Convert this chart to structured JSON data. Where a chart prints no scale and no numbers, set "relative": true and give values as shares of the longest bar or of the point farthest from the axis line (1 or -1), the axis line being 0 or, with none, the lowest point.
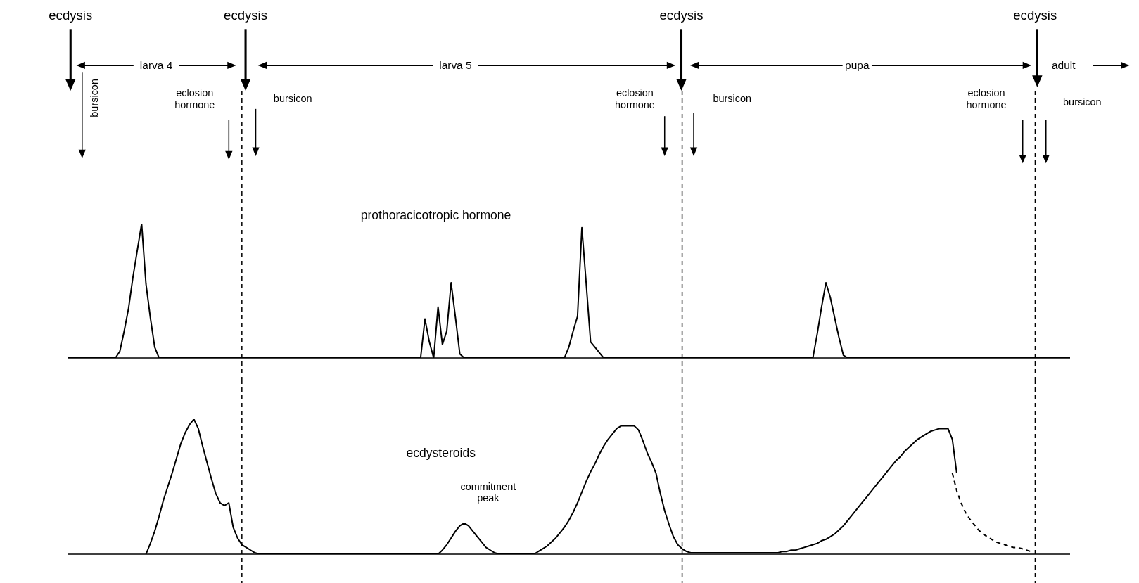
{
  "chart_data": [
    {
      "type": "line",
      "relative": true,
      "tick_labels": false,
      "categories": [
        null,
        null,
        null,
        null,
        null,
        null,
        null,
        null,
        null,
        null,
        null,
        null,
        null,
        null,
        null,
        null,
        null,
        null,
        null,
        null,
        null,
        null,
        null,
        null,
        null,
        null,
        null,
        null,
        null,
        null,
        null,
        null,
        null,
        null,
        null,
        null,
        null,
        null,
        null,
        null,
        null,
        null,
        null,
        null,
        null,
        null,
        null,
        null,
        null,
        null,
        null,
        null,
        null,
        null,
        null,
        null,
        null,
        null,
        null,
        null,
        null,
        null,
        null,
        null,
        null,
        null,
        null,
        null,
        null,
        null,
        null,
        null,
        null,
        null,
        null,
        null,
        null,
        null,
        null,
        null,
        null,
        null,
        null,
        null,
        null,
        null,
        null,
        null,
        null,
        null,
        null,
        null,
        null,
        null,
        null,
        null,
        null,
        null,
        null,
        null,
        null,
        null,
        null,
        null,
        null,
        null,
        null,
        null,
        null,
        null,
        null,
        null,
        null,
        null,
        null,
        null,
        null,
        null,
        null,
        null,
        null,
        null,
        null,
        null,
        null,
        null,
        null,
        null,
        null,
        null,
        null,
        null,
        null,
        null,
        null,
        null,
        null,
        null,
        null,
        null,
        null,
        null,
        null,
        null,
        null,
        null,
        null,
        null,
        null,
        null,
        null,
        null,
        null,
        null,
        null,
        null,
        null,
        null,
        null,
        null,
        null,
        null,
        null,
        null,
        null,
        null,
        null,
        null,
        null,
        null,
        null,
        null,
        null,
        null,
        null,
        null,
        null,
        null,
        null,
        null,
        null,
        null,
        null,
        null,
        null,
        null,
        null,
        null,
        null,
        null,
        null,
        null,
        null,
        null,
        null,
        null,
        null,
        null,
        null,
        null,
        null,
        null,
        null,
        null,
        null,
        null,
        null,
        null,
        null,
        null,
        null,
        null,
        null,
        null,
        null,
        null,
        null,
        null,
        null,
        null,
        null,
        null,
        null,
        null,
        null,
        null,
        null,
        null,
        null,
        null,
        null
      ],
      "series": [
        {
          "name": "prothoracicotropic hormone",
          "color": "#000000",
          "values": [
            0,
            0,
            0,
            0,
            0,
            0,
            0,
            0,
            0,
            0,
            0,
            0,
            0.05,
            0.2,
            0.37,
            0.6,
            0.8,
            1.0,
            0.55,
            0.3,
            0.08,
            0,
            0,
            0,
            0,
            0,
            0,
            0,
            0,
            0,
            0,
            0,
            0,
            0,
            0,
            0,
            0,
            0,
            0,
            0,
            0,
            0,
            0,
            0,
            0,
            0,
            0,
            0,
            0,
            0,
            0,
            0,
            0,
            0,
            0,
            0,
            0,
            0,
            0,
            0,
            0,
            0,
            0,
            0,
            0,
            0,
            0,
            0,
            0,
            0,
            0,
            0,
            0,
            0,
            0,
            0,
            0,
            0,
            0,
            0,
            0,
            0,
            0.29,
            0.12,
            0,
            0.38,
            0.1,
            0.2,
            0.56,
            0.3,
            0.03,
            0,
            0,
            0,
            0,
            0,
            0,
            0,
            0,
            0,
            0,
            0,
            0,
            0,
            0,
            0,
            0,
            0,
            0,
            0,
            0,
            0,
            0,
            0,
            0,
            0.08,
            0.2,
            0.31,
            0.97,
            0.55,
            0.12,
            0.08,
            0.04,
            0,
            0,
            0,
            0,
            0,
            0,
            0,
            0,
            0,
            0,
            0,
            0,
            0,
            0,
            0,
            0,
            0,
            0,
            0,
            0,
            0,
            0,
            0,
            0,
            0,
            0,
            0,
            0,
            0,
            0,
            0,
            0,
            0,
            0,
            0,
            0,
            0,
            0,
            0,
            0,
            0,
            0,
            0,
            0,
            0,
            0,
            0,
            0,
            0,
            0.18,
            0.38,
            0.56,
            0.45,
            0.3,
            0.15,
            0.02,
            0,
            0,
            0,
            0,
            0,
            0,
            0,
            0,
            0,
            0,
            0,
            0,
            0,
            0,
            0,
            0,
            0,
            0,
            0,
            0,
            0,
            0,
            0,
            0,
            0,
            0,
            0,
            0,
            0,
            0,
            0,
            0,
            0,
            0,
            0,
            0,
            0,
            0,
            0,
            0,
            0,
            0,
            0,
            0,
            0,
            0,
            0,
            0,
            0,
            0,
            0,
            0
          ]
        }
      ],
      "annotations": [
        "ecdysis",
        "ecdysis",
        "ecdysis",
        "ecdysis",
        "larva 4",
        "larva 5",
        "pupa",
        "adult",
        "bursicon",
        "eclosion hormone",
        "bursicon",
        "eclosion hormone",
        "bursicon",
        "eclosion hormone",
        "bursicon"
      ]
    },
    {
      "type": "line",
      "relative": true,
      "tick_labels": false,
      "categories": [
        null,
        null,
        null,
        null,
        null,
        null,
        null,
        null,
        null,
        null,
        null,
        null,
        null,
        null,
        null,
        null,
        null,
        null,
        null,
        null,
        null,
        null,
        null,
        null,
        null,
        null,
        null,
        null,
        null,
        null,
        null,
        null,
        null,
        null,
        null,
        null,
        null,
        null,
        null,
        null,
        null,
        null,
        null,
        null,
        null,
        null,
        null,
        null,
        null,
        null,
        null,
        null,
        null,
        null,
        null,
        null,
        null,
        null,
        null,
        null,
        null,
        null,
        null,
        null,
        null,
        null,
        null,
        null,
        null,
        null,
        null,
        null,
        null,
        null,
        null,
        null,
        null,
        null,
        null,
        null,
        null,
        null,
        null,
        null,
        null,
        null,
        null,
        null,
        null,
        null,
        null,
        null,
        null,
        null,
        null,
        null,
        null,
        null,
        null,
        null,
        null,
        null,
        null,
        null,
        null,
        null,
        null,
        null,
        null,
        null,
        null,
        null,
        null,
        null,
        null,
        null,
        null,
        null,
        null,
        null,
        null,
        null,
        null,
        null,
        null,
        null,
        null,
        null,
        null,
        null,
        null,
        null,
        null,
        null,
        null,
        null,
        null,
        null,
        null,
        null,
        null,
        null,
        null,
        null,
        null,
        null,
        null,
        null,
        null,
        null,
        null,
        null,
        null,
        null,
        null,
        null,
        null,
        null,
        null,
        null,
        null,
        null,
        null,
        null,
        null,
        null,
        null,
        null,
        null,
        null,
        null,
        null,
        null,
        null,
        null,
        null,
        null,
        null,
        null,
        null,
        null,
        null,
        null,
        null,
        null,
        null,
        null,
        null,
        null,
        null,
        null,
        null,
        null,
        null,
        null,
        null,
        null,
        null,
        null,
        null,
        null,
        null,
        null,
        null,
        null,
        null,
        null,
        null,
        null,
        null,
        null,
        null,
        null,
        null,
        null,
        null,
        null,
        null,
        null,
        null,
        null,
        null,
        null,
        null,
        null,
        null,
        null,
        null,
        null,
        null,
        null
      ],
      "series": [
        {
          "name": "ecdysteroids",
          "color": "#000000",
          "values": [
            null,
            null,
            null,
            null,
            null,
            null,
            null,
            null,
            null,
            null,
            null,
            null,
            null,
            null,
            null,
            null,
            null,
            null,
            0,
            0.08,
            0.17,
            0.28,
            0.4,
            0.5,
            0.6,
            0.71,
            0.82,
            0.9,
            0.96,
            1.0,
            0.93,
            0.8,
            0.68,
            0.56,
            0.45,
            0.38,
            0.36,
            0.38,
            0.2,
            0.12,
            0.07,
            0.05,
            0.03,
            0.01,
            0,
            0,
            0,
            0,
            0,
            0,
            0,
            0,
            0,
            0,
            0,
            0,
            0,
            0,
            0,
            0,
            0,
            0,
            0,
            0,
            0,
            0,
            0,
            0,
            0,
            0,
            0,
            0,
            0,
            0,
            0,
            0,
            0,
            0,
            0,
            0,
            0,
            0,
            0,
            0,
            0,
            0,
            0.03,
            0.07,
            0.12,
            0.17,
            0.21,
            0.23,
            0.21,
            0.17,
            0.13,
            0.09,
            0.05,
            0.03,
            0.01,
            0,
            0,
            0,
            0,
            0,
            0,
            0,
            0,
            0,
            0.02,
            0.04,
            0.06,
            0.09,
            0.12,
            0.16,
            0.2,
            0.25,
            0.31,
            0.38,
            0.46,
            0.54,
            0.61,
            0.67,
            0.74,
            0.8,
            0.85,
            0.89,
            0.93,
            0.95,
            0.95,
            0.95,
            0.95,
            0.92,
            0.84,
            0.75,
            0.68,
            0.6,
            0.45,
            0.32,
            0.22,
            0.13,
            0.07,
            0.04,
            0.02,
            0.01,
            0.01,
            0.01,
            0.01,
            0.01,
            0.01,
            0.01,
            0.01,
            0.01,
            0.01,
            0.01,
            0.01,
            0.01,
            0.01,
            0.01,
            0.01,
            0.01,
            0.01,
            0.01,
            0.01,
            0.01,
            0.02,
            0.02,
            0.03,
            0.03,
            0.04,
            0.05,
            0.06,
            0.07,
            0.08,
            0.1,
            0.11,
            0.13,
            0.15,
            0.18,
            0.21,
            0.25,
            0.29,
            0.33,
            0.37,
            0.41,
            0.45,
            0.49,
            0.53,
            0.57,
            0.61,
            0.65,
            0.69,
            0.72,
            0.76,
            0.79,
            0.82,
            0.85,
            0.87,
            0.89,
            0.91,
            0.92,
            0.93,
            0.93,
            0.93,
            0.85,
            0.6,
            null,
            null,
            null,
            null,
            null,
            null,
            null,
            null,
            null,
            null,
            null,
            null,
            null,
            null,
            null,
            null,
            null,
            null,
            null,
            null,
            null,
            null,
            null,
            null,
            null,
            null
          ]
        },
        {
          "color": "#000000",
          "line_style": "dashed",
          "values": [
            null,
            null,
            null,
            null,
            null,
            null,
            null,
            null,
            null,
            null,
            null,
            null,
            null,
            null,
            null,
            null,
            null,
            null,
            null,
            null,
            null,
            null,
            null,
            null,
            null,
            null,
            null,
            null,
            null,
            null,
            null,
            null,
            null,
            null,
            null,
            null,
            null,
            null,
            null,
            null,
            null,
            null,
            null,
            null,
            null,
            null,
            null,
            null,
            null,
            null,
            null,
            null,
            null,
            null,
            null,
            null,
            null,
            null,
            null,
            null,
            null,
            null,
            null,
            null,
            null,
            null,
            null,
            null,
            null,
            null,
            null,
            null,
            null,
            null,
            null,
            null,
            null,
            null,
            null,
            null,
            null,
            null,
            null,
            null,
            null,
            null,
            null,
            null,
            null,
            null,
            null,
            null,
            null,
            null,
            null,
            null,
            null,
            null,
            null,
            null,
            null,
            null,
            null,
            null,
            null,
            null,
            null,
            null,
            null,
            null,
            null,
            null,
            null,
            null,
            null,
            null,
            null,
            null,
            null,
            null,
            null,
            null,
            null,
            null,
            null,
            null,
            null,
            null,
            null,
            null,
            null,
            null,
            null,
            null,
            null,
            null,
            null,
            null,
            null,
            null,
            null,
            null,
            null,
            null,
            null,
            null,
            null,
            null,
            null,
            null,
            null,
            null,
            null,
            null,
            null,
            null,
            null,
            null,
            null,
            null,
            null,
            null,
            null,
            null,
            null,
            null,
            null,
            null,
            null,
            null,
            null,
            null,
            null,
            null,
            null,
            null,
            null,
            null,
            null,
            null,
            null,
            null,
            null,
            null,
            null,
            null,
            null,
            null,
            null,
            null,
            null,
            null,
            null,
            null,
            null,
            null,
            null,
            null,
            null,
            null,
            null,
            null,
            null,
            0.6,
            0.47,
            0.38,
            0.31,
            0.26,
            0.22,
            0.18,
            0.15,
            0.13,
            0.11,
            0.09,
            0.08,
            0.07,
            0.06,
            0.05,
            0.05,
            0.04,
            0.03,
            0.02,
            null,
            null,
            null,
            null,
            null,
            null,
            null,
            null,
            null
          ]
        }
      ],
      "annotations": [
        "commitment peak"
      ]
    }
  ]
}
